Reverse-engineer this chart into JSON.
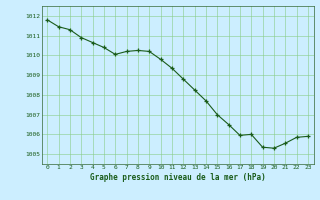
{
  "x": [
    0,
    1,
    2,
    3,
    4,
    5,
    6,
    7,
    8,
    9,
    10,
    11,
    12,
    13,
    14,
    15,
    16,
    17,
    18,
    19,
    20,
    21,
    22,
    23
  ],
  "y": [
    1011.8,
    1011.45,
    1011.3,
    1010.9,
    1010.65,
    1010.4,
    1010.05,
    1010.2,
    1010.25,
    1010.2,
    1009.8,
    1009.35,
    1008.8,
    1008.25,
    1007.7,
    1007.0,
    1006.5,
    1005.95,
    1006.0,
    1005.35,
    1005.3,
    1005.55,
    1005.85,
    1005.9
  ],
  "ylim": [
    1004.5,
    1012.5
  ],
  "yticks": [
    1005,
    1006,
    1007,
    1008,
    1009,
    1010,
    1011,
    1012
  ],
  "xticks": [
    0,
    1,
    2,
    3,
    4,
    5,
    6,
    7,
    8,
    9,
    10,
    11,
    12,
    13,
    14,
    15,
    16,
    17,
    18,
    19,
    20,
    21,
    22,
    23
  ],
  "xlabel": "Graphe pression niveau de la mer (hPa)",
  "line_color": "#1a5c1a",
  "marker_color": "#1a5c1a",
  "bg_color": "#cceeff",
  "grid_color": "#88cc88",
  "xlabel_color": "#1a5c1a",
  "tick_color": "#1a5c1a",
  "spine_color": "#336633"
}
